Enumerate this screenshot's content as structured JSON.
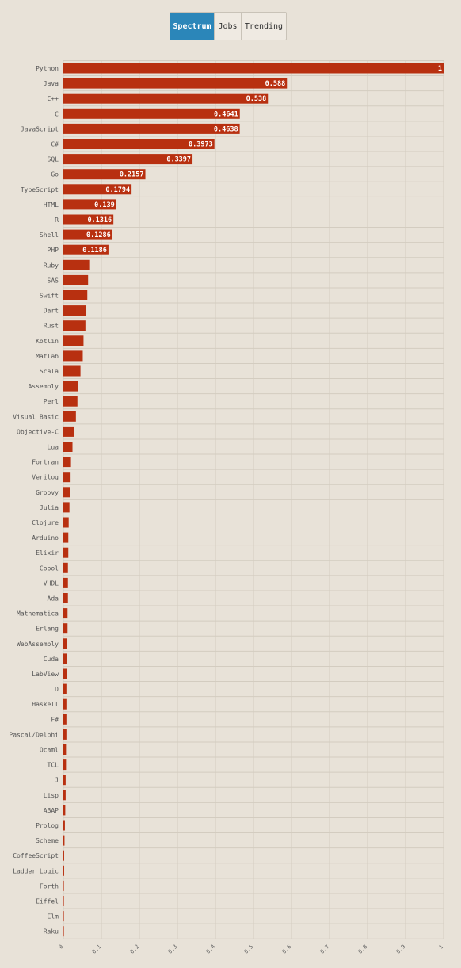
{
  "tabs": [
    {
      "label": "Spectrum",
      "active": true
    },
    {
      "label": "Jobs",
      "active": false
    },
    {
      "label": "Trending",
      "active": false
    }
  ],
  "colors": {
    "bar": "#b83010",
    "tab_active": "#2b86b9",
    "background": "#e8e2d8"
  },
  "chart_data": {
    "type": "bar",
    "orientation": "horizontal",
    "categories": [
      "Python",
      "Java",
      "C++",
      "C",
      "JavaScript",
      "C#",
      "SQL",
      "Go",
      "TypeScript",
      "HTML",
      "R",
      "Shell",
      "PHP",
      "Ruby",
      "SAS",
      "Swift",
      "Dart",
      "Rust",
      "Kotlin",
      "Matlab",
      "Scala",
      "Assembly",
      "Perl",
      "Visual Basic",
      "Objective-C",
      "Lua",
      "Fortran",
      "Verilog",
      "Groovy",
      "Julia",
      "Clojure",
      "Arduino",
      "Elixir",
      "Cobol",
      "VHDL",
      "Ada",
      "Mathematica",
      "Erlang",
      "WebAssembly",
      "Cuda",
      "LabView",
      "D",
      "Haskell",
      "F#",
      "Pascal/Delphi",
      "Ocaml",
      "TCL",
      "J",
      "Lisp",
      "ABAP",
      "Prolog",
      "Scheme",
      "CoffeeScript",
      "Ladder Logic",
      "Forth",
      "Eiffel",
      "Elm",
      "Raku"
    ],
    "values": [
      1,
      0.588,
      0.538,
      0.4641,
      0.4638,
      0.3973,
      0.3397,
      0.2157,
      0.1794,
      0.139,
      0.1316,
      0.1286,
      0.1186,
      0.068,
      0.065,
      0.063,
      0.06,
      0.058,
      0.053,
      0.051,
      0.045,
      0.038,
      0.037,
      0.033,
      0.029,
      0.024,
      0.02,
      0.019,
      0.017,
      0.016,
      0.014,
      0.013,
      0.013,
      0.012,
      0.012,
      0.012,
      0.011,
      0.011,
      0.01,
      0.01,
      0.009,
      0.008,
      0.008,
      0.008,
      0.008,
      0.007,
      0.007,
      0.006,
      0.006,
      0.005,
      0.004,
      0.003,
      0.002,
      0.002,
      0.001,
      0.001,
      0.0005,
      0.0003
    ],
    "value_labels_shown": [
      "1",
      "0.588",
      "0.538",
      "0.4641",
      "0.4638",
      "0.3973",
      "0.3397",
      "0.2157",
      "0.1794",
      "0.139",
      "0.1316",
      "0.1286",
      "0.1186"
    ],
    "x_ticks": [
      "0",
      "0.1",
      "0.2",
      "0.3",
      "0.4",
      "0.5",
      "0.6",
      "0.7",
      "0.8",
      "0.9",
      "1"
    ],
    "xlim": [
      0,
      1
    ],
    "grid": true,
    "title": "",
    "xlabel": "",
    "ylabel": ""
  }
}
